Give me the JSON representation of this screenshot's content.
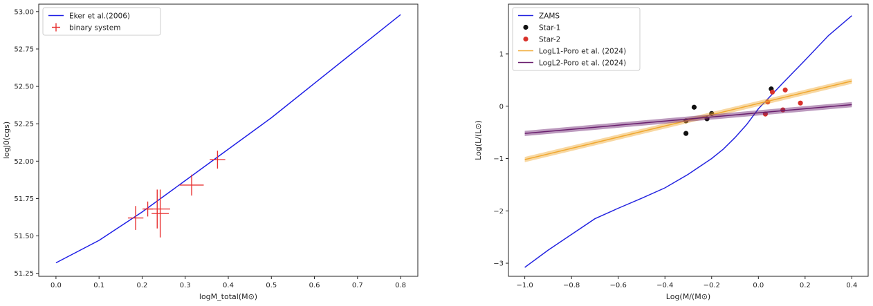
{
  "chart_data": [
    {
      "type": "line",
      "xlabel": "logM_total(M⊙)",
      "ylabel": "logJ0(cgs)",
      "xlim": [
        -0.04,
        0.84
      ],
      "ylim": [
        51.23,
        53.05
      ],
      "xticks": [
        0.0,
        0.1,
        0.2,
        0.3,
        0.4,
        0.5,
        0.6,
        0.7,
        0.8
      ],
      "xtick_labels": [
        "0.0",
        "0.1",
        "0.2",
        "0.3",
        "0.4",
        "0.5",
        "0.6",
        "0.7",
        "0.8"
      ],
      "yticks": [
        51.25,
        51.5,
        51.75,
        52.0,
        52.25,
        52.5,
        52.75,
        53.0
      ],
      "ytick_labels": [
        "51.25",
        "51.50",
        "51.75",
        "52.00",
        "52.25",
        "52.50",
        "52.75",
        "53.00"
      ],
      "legend": {
        "placement": "upper-left",
        "entries": [
          {
            "label": "Eker et al.(2006)",
            "color": "#1f1fe6",
            "marker": "line"
          },
          {
            "label": "binary system",
            "color": "#e83030",
            "marker": "cross"
          }
        ]
      },
      "series": [
        {
          "name": "Eker et al.(2006)",
          "kind": "line",
          "color": "#1f1fe6",
          "x": [
            0.0,
            0.1,
            0.2,
            0.3,
            0.4,
            0.5,
            0.6,
            0.7,
            0.8
          ],
          "y": [
            51.32,
            51.47,
            51.66,
            51.87,
            52.08,
            52.29,
            52.52,
            52.75,
            52.98
          ]
        },
        {
          "name": "binary system",
          "kind": "errorbar",
          "color": "#e83030",
          "points": [
            {
              "x": 0.185,
              "y": 51.62,
              "xerr": 0.018,
              "yerr": 0.08
            },
            {
              "x": 0.213,
              "y": 51.68,
              "xerr": 0.012,
              "yerr": 0.05
            },
            {
              "x": 0.235,
              "y": 51.68,
              "xerr": 0.03,
              "yerr": 0.13
            },
            {
              "x": 0.242,
              "y": 51.65,
              "xerr": 0.02,
              "yerr": 0.16
            },
            {
              "x": 0.315,
              "y": 51.84,
              "xerr": 0.028,
              "yerr": 0.07
            },
            {
              "x": 0.375,
              "y": 52.01,
              "xerr": 0.018,
              "yerr": 0.06
            }
          ]
        }
      ]
    },
    {
      "type": "scatter",
      "xlabel": "Log(M/(M⊙)",
      "ylabel": "Log(L/(L⊙)",
      "xlim": [
        -1.07,
        0.47
      ],
      "ylim": [
        -3.25,
        1.95
      ],
      "xticks": [
        -1.0,
        -0.8,
        -0.6,
        -0.4,
        -0.2,
        0.0,
        0.2,
        0.4
      ],
      "xtick_labels": [
        "−1.0",
        "−0.8",
        "−0.6",
        "−0.4",
        "−0.2",
        "0.0",
        "0.2",
        "0.4"
      ],
      "yticks": [
        -3,
        -2,
        -1,
        0,
        1
      ],
      "ytick_labels": [
        "−3",
        "−2",
        "−1",
        "0",
        "1"
      ],
      "legend": {
        "placement": "upper-left",
        "entries": [
          {
            "label": "ZAMS",
            "color": "#2424e0",
            "marker": "line"
          },
          {
            "label": "Star-1",
            "color": "#111111",
            "marker": "dot"
          },
          {
            "label": "Star-2",
            "color": "#d8322b",
            "marker": "dot"
          },
          {
            "label": "LogL1-Poro et al. (2024)",
            "color": "#f0a830",
            "marker": "line"
          },
          {
            "label": "LogL2-Poro et al. (2024)",
            "color": "#6a1f6e",
            "marker": "line"
          }
        ]
      },
      "series": [
        {
          "name": "ZAMS",
          "kind": "line",
          "color": "#2424e0",
          "x": [
            -1.0,
            -0.9,
            -0.8,
            -0.7,
            -0.6,
            -0.5,
            -0.4,
            -0.3,
            -0.2,
            -0.15,
            -0.1,
            -0.05,
            0.0,
            0.1,
            0.2,
            0.3,
            0.4
          ],
          "y": [
            -3.08,
            -2.75,
            -2.45,
            -2.15,
            -1.95,
            -1.76,
            -1.56,
            -1.3,
            -1.0,
            -0.82,
            -0.6,
            -0.35,
            -0.05,
            0.42,
            0.88,
            1.35,
            1.73
          ]
        },
        {
          "name": "Star-1",
          "kind": "points",
          "color": "#111111",
          "x": [
            -0.31,
            -0.31,
            -0.275,
            -0.22,
            -0.2,
            0.055
          ],
          "y": [
            -0.28,
            -0.52,
            -0.02,
            -0.24,
            -0.14,
            0.33
          ]
        },
        {
          "name": "Star-2",
          "kind": "points",
          "color": "#d8322b",
          "x": [
            0.03,
            0.04,
            0.06,
            0.105,
            0.115,
            0.18
          ],
          "y": [
            -0.15,
            0.08,
            0.27,
            -0.07,
            0.31,
            0.06
          ]
        },
        {
          "name": "LogL1-Poro et al. (2024)",
          "kind": "band",
          "color": "#f0a830",
          "x": [
            -1.0,
            0.4
          ],
          "y": [
            -1.02,
            0.48
          ],
          "band_halfwidth": 0.05
        },
        {
          "name": "LogL2-Poro et al. (2024)",
          "kind": "band",
          "color": "#6a1f6e",
          "x": [
            -1.0,
            0.4
          ],
          "y": [
            -0.52,
            0.03
          ],
          "band_halfwidth": 0.05
        }
      ]
    }
  ]
}
